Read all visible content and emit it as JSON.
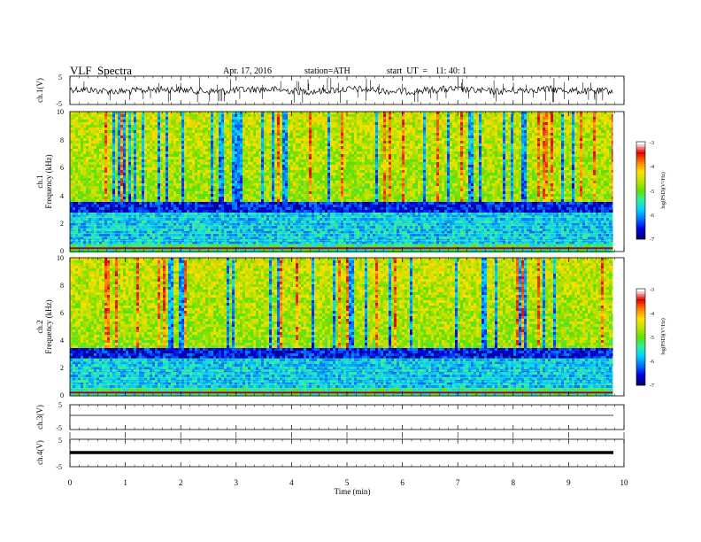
{
  "header": {
    "title": "VLF  Spectra",
    "date": "Apr. 17, 2016",
    "station": "station=ATH",
    "start_label": "start  UT  =",
    "start_time": "11: 40: 1"
  },
  "panels": {
    "ch1_wave": {
      "label": "ch.1(V)",
      "yticks": [
        "5",
        "-5"
      ]
    },
    "ch1_spec": {
      "channel_label": "ch.1",
      "ylabel": "Frequency (kHz)",
      "yticks": [
        "10",
        "8",
        "6",
        "4",
        "2",
        "0"
      ]
    },
    "ch2_spec": {
      "channel_label": "ch.2",
      "ylabel": "Frequency (kHz)",
      "yticks": [
        "10",
        "8",
        "6",
        "4",
        "2",
        "0"
      ]
    },
    "ch3_wave": {
      "label": "ch.3(V)",
      "yticks": [
        "5",
        "-5"
      ]
    },
    "ch4_wave": {
      "label": "ch.4(V)",
      "yticks": [
        "5",
        "-5"
      ]
    }
  },
  "colorbar": {
    "label": "log(PSD)(V²/Hz)",
    "ticks": [
      "-3",
      "-4",
      "-5",
      "-6",
      "-7"
    ],
    "colors": [
      "#000070",
      "#0000e0",
      "#0070ff",
      "#00d0ff",
      "#30f0a0",
      "#60e000",
      "#c0e000",
      "#ffe000",
      "#ff8000",
      "#e00000",
      "#ffffff"
    ]
  },
  "chart_data": [
    {
      "type": "line",
      "title": "VLF  Spectra",
      "series": [
        {
          "name": "ch.1(V)",
          "ylim": [
            -5,
            5
          ],
          "approx_level": 0.0,
          "description_level": "noisy signal around 0 V with spikes"
        },
        {
          "name": "ch.3(V)",
          "ylim": [
            -5,
            5
          ],
          "approx_level": 0.0
        },
        {
          "name": "ch.4(V)",
          "ylim": [
            -5,
            5
          ],
          "approx_level": 0.0
        }
      ],
      "xlabel": "Time  (min)",
      "xlim": [
        0,
        10
      ],
      "xticks": [
        "0",
        "1",
        "2",
        "3",
        "4",
        "5",
        "6",
        "7",
        "8",
        "9",
        "10"
      ],
      "data_end_min": 9.8
    },
    {
      "type": "heatmap",
      "series": [
        {
          "name": "ch.1",
          "ylim": [
            0,
            10
          ],
          "quiet_band_khz": [
            2.8,
            3.6
          ],
          "clim": [
            -7,
            -3
          ]
        },
        {
          "name": "ch.2",
          "ylim": [
            0,
            10
          ],
          "quiet_band_khz": [
            2.8,
            3.6
          ],
          "clim": [
            -7,
            -3
          ]
        }
      ],
      "xlabel": "Time  (min)",
      "ylabel": "Frequency (kHz)",
      "xlim": [
        0,
        10
      ],
      "colorbar_label": "log(PSD)(V²/Hz)"
    }
  ]
}
